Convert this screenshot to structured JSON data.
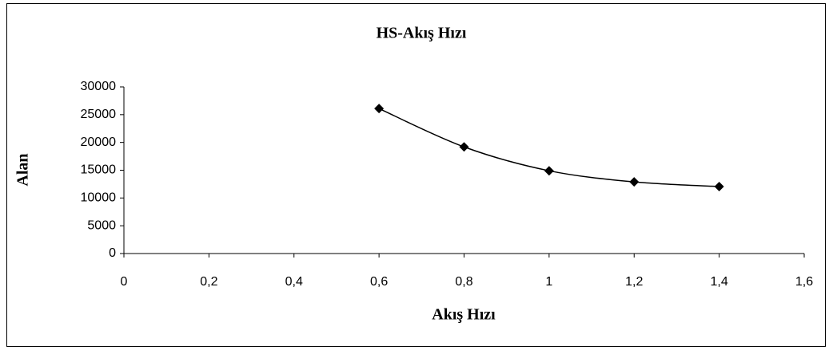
{
  "chart_data": {
    "type": "line",
    "title": "HS-Akış Hızı",
    "x_label": "Akış Hızı",
    "y_label": "Alan",
    "x": [
      0.6,
      0.8,
      1,
      1.2,
      1.4
    ],
    "series": [
      {
        "name": "Alan",
        "color": "#000000",
        "values": [
          26100,
          19200,
          14900,
          12900,
          12050
        ]
      }
    ],
    "xlim": [
      0,
      1.6
    ],
    "xticks": [
      0,
      {
        "value": 0.2,
        "label": "0,2"
      },
      {
        "value": 0.4,
        "label": "0,4"
      },
      {
        "value": 0.6,
        "label": "0,6"
      },
      {
        "value": 0.8,
        "label": "0,8"
      },
      1,
      {
        "value": 1.2,
        "label": "1,2"
      },
      {
        "value": 1.4,
        "label": "1,4"
      },
      {
        "value": 1.6,
        "label": "1,6"
      }
    ],
    "ylim": [
      0,
      30000
    ],
    "yticks": [
      0,
      5000,
      10000,
      15000,
      20000,
      25000,
      30000
    ],
    "smooth": true,
    "grid": false
  }
}
